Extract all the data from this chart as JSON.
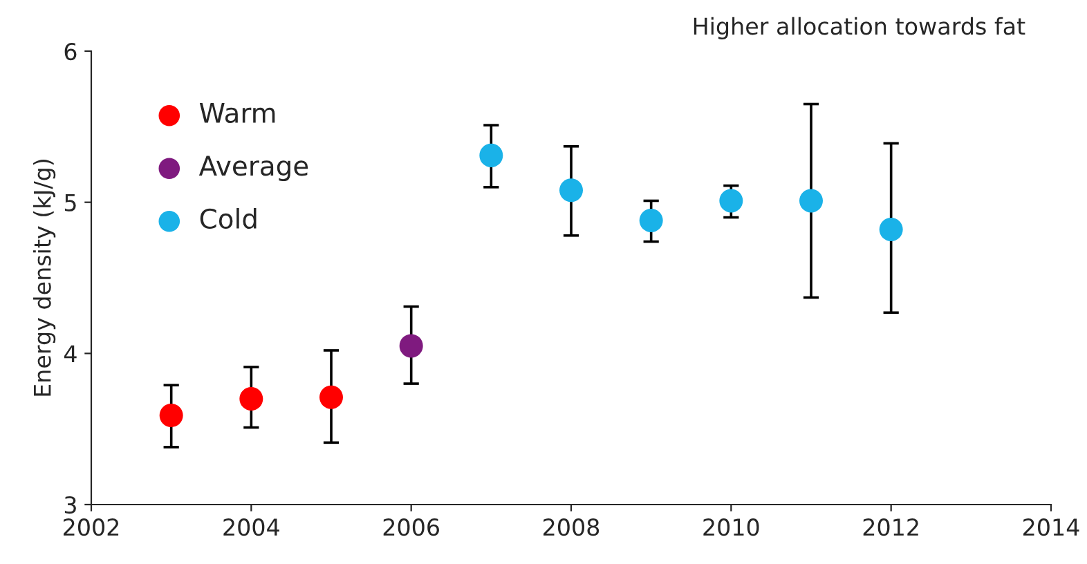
{
  "chart_data": {
    "type": "scatter",
    "ylabel": "Energy density (kJ/g)",
    "annotations": [
      "Higher allocation towards fat"
    ],
    "series": [
      {
        "name": "Warm",
        "color": "#ff0000",
        "x": [
          2003,
          2004,
          2005
        ],
        "values": [
          3.59,
          3.7,
          3.71
        ],
        "errors": [
          [
            3.38,
            3.79
          ],
          [
            3.51,
            3.91
          ],
          [
            3.41,
            4.02
          ]
        ]
      },
      {
        "name": "Average",
        "color": "#7f1a7f",
        "x": [
          2006
        ],
        "values": [
          4.05
        ],
        "errors": [
          [
            3.8,
            4.31
          ]
        ]
      },
      {
        "name": "Cold",
        "color": "#1ab2e8",
        "x": [
          2007,
          2008,
          2009,
          2010,
          2011,
          2012
        ],
        "values": [
          5.31,
          5.08,
          4.88,
          5.01,
          5.01,
          4.82
        ],
        "errors": [
          [
            5.1,
            5.51
          ],
          [
            4.78,
            5.37
          ],
          [
            4.74,
            5.01
          ],
          [
            4.9,
            5.11
          ],
          [
            4.37,
            5.65
          ],
          [
            4.27,
            5.39
          ]
        ]
      }
    ],
    "xlim": [
      2002,
      2014
    ],
    "xticks": [
      2002,
      2004,
      2006,
      2008,
      2010,
      2012,
      2014
    ],
    "ylim": [
      3,
      6
    ],
    "yticks": [
      3,
      4,
      5,
      6
    ],
    "marker": "circle",
    "legend": "top left",
    "grid": false
  }
}
